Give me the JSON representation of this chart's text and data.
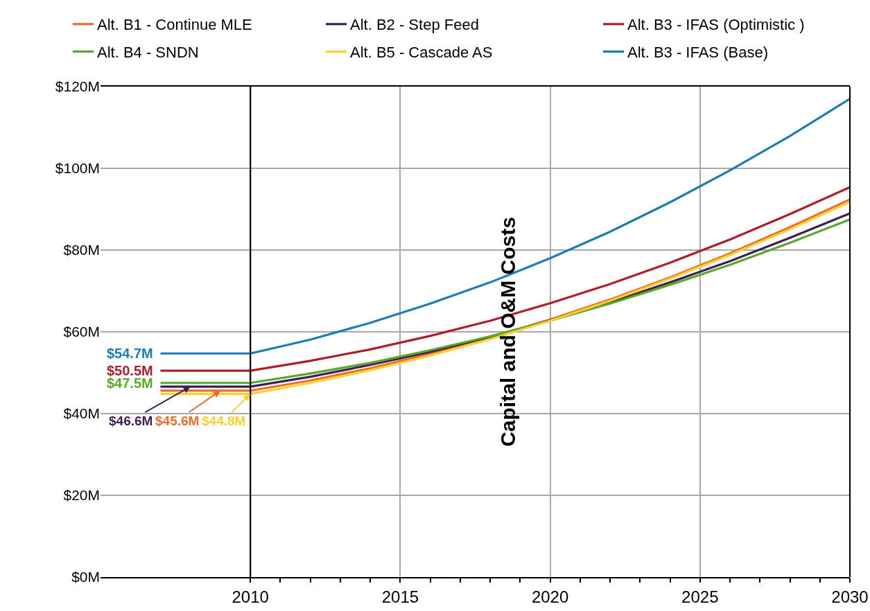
{
  "chart_data": {
    "type": "line",
    "ylabel": "Capital and O&M Costs",
    "x": [
      2007,
      2008,
      2009,
      2010,
      2012,
      2014,
      2016,
      2018,
      2020,
      2022,
      2024,
      2026,
      2028,
      2030
    ],
    "xlim": [
      2005,
      2030
    ],
    "xticks": [
      2010,
      {
        "value": 2011,
        "label": null
      },
      {
        "value": 2012,
        "label": null
      },
      {
        "value": 2013,
        "label": null
      },
      {
        "value": 2014,
        "label": null
      },
      2015,
      {
        "value": 2016,
        "label": null
      },
      {
        "value": 2017,
        "label": null
      },
      {
        "value": 2018,
        "label": null
      },
      {
        "value": 2019,
        "label": null
      },
      2020,
      {
        "value": 2021,
        "label": null
      },
      {
        "value": 2022,
        "label": null
      },
      {
        "value": 2023,
        "label": null
      },
      {
        "value": 2024,
        "label": null
      },
      2025,
      {
        "value": 2026,
        "label": null
      },
      {
        "value": 2027,
        "label": null
      },
      {
        "value": 2028,
        "label": null
      },
      {
        "value": 2029,
        "label": null
      },
      2030
    ],
    "ylim": [
      0,
      120
    ],
    "yticks": [
      {
        "value": 0,
        "label": "$0M"
      },
      {
        "value": 20,
        "label": "$20M"
      },
      {
        "value": 40,
        "label": "$40M"
      },
      {
        "value": 60,
        "label": "$60M"
      },
      {
        "value": 80,
        "label": "$80M"
      },
      {
        "value": 100,
        "label": "$100M"
      },
      {
        "value": 120,
        "label": "$120M"
      }
    ],
    "grid": true,
    "legend": "top",
    "line_style": "solid",
    "ref_lines": [
      {
        "axis": "x",
        "value": 2010,
        "color": "#000000"
      }
    ],
    "series": [
      {
        "name": "Alt. B1 - Continue MLE",
        "color": "#f26b22",
        "values": [
          45.6,
          45.6,
          45.6,
          45.6,
          48.1,
          51.1,
          54.6,
          58.6,
          63.0,
          67.9,
          73.3,
          79.2,
          85.6,
          92.4
        ],
        "value_labels": [
          null,
          null,
          "$45.6M",
          null,
          null,
          null,
          null,
          null,
          null,
          null,
          null,
          null,
          null,
          null
        ]
      },
      {
        "name": "Alt. B2 - Step Feed",
        "color": "#3f1d55",
        "values": [
          46.6,
          46.6,
          46.6,
          46.6,
          49.0,
          51.9,
          55.1,
          58.8,
          62.8,
          67.2,
          72.1,
          77.3,
          83.0,
          89.0
        ],
        "value_labels": [
          null,
          "$46.6M",
          null,
          null,
          null,
          null,
          null,
          null,
          null,
          null,
          null,
          null,
          null,
          null
        ]
      },
      {
        "name": "Alt. B3 - IFAS (Optimistic )",
        "color": "#b01c2c",
        "values": [
          50.5,
          50.5,
          50.5,
          50.5,
          52.9,
          55.7,
          59.0,
          62.7,
          67.0,
          71.7,
          76.9,
          82.6,
          88.8,
          95.4
        ],
        "value_labels": [
          "$50.5M",
          null,
          null,
          null,
          null,
          null,
          null,
          null,
          null,
          null,
          null,
          null,
          null,
          null
        ]
      },
      {
        "name": "Alt. B4 - SNDN",
        "color": "#58a82b",
        "values": [
          47.5,
          47.5,
          47.5,
          47.5,
          49.8,
          52.4,
          55.5,
          58.9,
          62.7,
          66.9,
          71.5,
          76.4,
          81.8,
          87.5
        ],
        "value_labels": [
          "$47.5M",
          null,
          null,
          null,
          null,
          null,
          null,
          null,
          null,
          null,
          null,
          null,
          null,
          null
        ]
      },
      {
        "name": "Alt. B5 - Cascade AS",
        "color": "#f6d22e",
        "values": [
          44.8,
          44.8,
          44.8,
          44.8,
          47.5,
          50.6,
          54.2,
          58.2,
          62.7,
          67.6,
          73.0,
          78.8,
          85.1,
          91.8
        ],
        "value_labels": [
          null,
          null,
          null,
          "$44.8M",
          null,
          null,
          null,
          null,
          null,
          null,
          null,
          null,
          null,
          null
        ]
      },
      {
        "name": "Alt. B3 - IFAS (Base)",
        "color": "#1b7db8",
        "values": [
          54.7,
          54.7,
          54.7,
          54.7,
          58.1,
          62.2,
          66.9,
          72.1,
          78.0,
          84.5,
          91.7,
          99.5,
          107.9,
          117.0
        ],
        "value_labels": [
          "$54.7M",
          null,
          null,
          null,
          null,
          null,
          null,
          null,
          null,
          null,
          null,
          null,
          null,
          null
        ]
      }
    ]
  }
}
